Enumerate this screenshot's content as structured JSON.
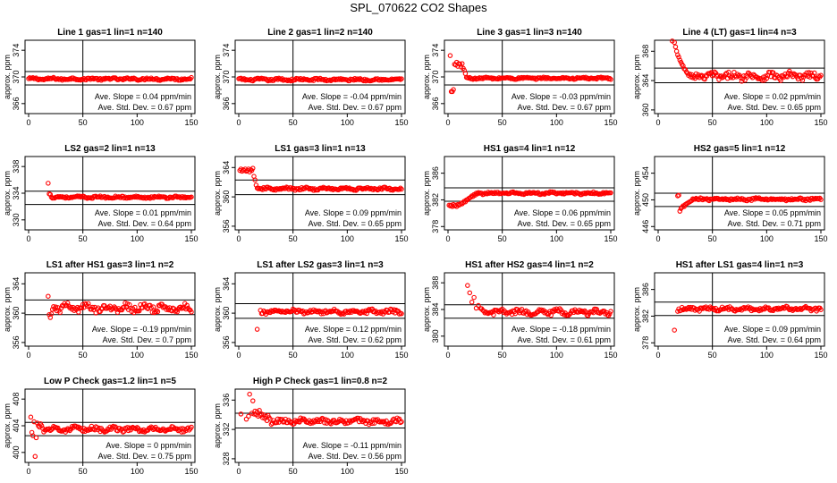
{
  "figure_title": "SPL_070622  CO2 Shapes",
  "colors": {
    "points": "#ff0000",
    "axes": "#000000",
    "background": "#ffffff"
  },
  "chart_data": [
    {
      "type": "scatter",
      "title": "Line 1 gas=1 lin=1 n=140",
      "ylabel": "approx. ppm",
      "xlim": [
        0,
        150
      ],
      "xticks": [
        0,
        50,
        100,
        150
      ],
      "ylim": [
        364.5,
        375.5
      ],
      "yticks": [
        366,
        370,
        374
      ],
      "hlines": [
        368.8,
        370.8
      ],
      "vline": 50,
      "slope_label": "Ave. Slope = 0.04 ppm/min",
      "std_label": "Ave. Std. Dev. = 0.67 ppm",
      "x_start": 0,
      "x_end": 150,
      "baseline": 369.7,
      "noise": 0.15,
      "early": []
    },
    {
      "type": "scatter",
      "title": "Line 2 gas=1 lin=2 n=140",
      "ylabel": "approx. ppm",
      "xlim": [
        0,
        150
      ],
      "xticks": [
        0,
        50,
        100,
        150
      ],
      "ylim": [
        364.5,
        375.5
      ],
      "yticks": [
        366,
        370,
        374
      ],
      "hlines": [
        368.8,
        370.8
      ],
      "vline": 50,
      "slope_label": "Ave. Slope = -0.04 ppm/min",
      "std_label": "Ave. Std. Dev. = 0.67 ppm",
      "x_start": 0,
      "x_end": 150,
      "baseline": 369.6,
      "noise": 0.15,
      "early": []
    },
    {
      "type": "scatter",
      "title": "Line 3 gas=1 lin=3 n=140",
      "ylabel": "approx. ppm",
      "xlim": [
        0,
        150
      ],
      "xticks": [
        0,
        50,
        100,
        150
      ],
      "ylim": [
        364.5,
        375.5
      ],
      "yticks": [
        366,
        370,
        374
      ],
      "hlines": [
        368.8,
        370.8
      ],
      "vline": 50,
      "slope_label": "Ave. Slope = -0.03 ppm/min",
      "std_label": "Ave. Std. Dev. = 0.67 ppm",
      "x_start": 17,
      "x_end": 150,
      "baseline": 369.8,
      "noise": 0.12,
      "early": [
        [
          2,
          373.2
        ],
        [
          3,
          367.8
        ],
        [
          4,
          367.8
        ],
        [
          5,
          368.1
        ],
        [
          6,
          371.9
        ],
        [
          7,
          371.8
        ],
        [
          8,
          372.2
        ],
        [
          9,
          371.6
        ],
        [
          10,
          372.0
        ],
        [
          11,
          371.9
        ],
        [
          12,
          371.5
        ],
        [
          13,
          372.0
        ],
        [
          14,
          371.3
        ],
        [
          15,
          371.0
        ],
        [
          16,
          370.5
        ]
      ]
    },
    {
      "type": "scatter",
      "title": "Line 4 (LT) gas=1 lin=4 n=3",
      "ylabel": "approx. ppm",
      "xlim": [
        0,
        150
      ],
      "xticks": [
        0,
        50,
        100,
        150
      ],
      "ylim": [
        359.5,
        369.5
      ],
      "yticks": [
        360,
        364,
        368
      ],
      "hlines": [
        363.7,
        365.7
      ],
      "vline": 50,
      "slope_label": "Ave. Slope = 0.02 ppm/min",
      "std_label": "Ave. Std. Dev. = 0.65 ppm",
      "x_start": 35,
      "x_end": 150,
      "baseline": 364.6,
      "noise": 0.45,
      "early": [
        [
          13,
          369.4
        ],
        [
          15,
          369.2
        ],
        [
          16,
          368.6
        ],
        [
          17,
          368.0
        ],
        [
          18,
          367.5
        ],
        [
          19,
          367.2
        ],
        [
          20,
          366.8
        ],
        [
          21,
          366.5
        ],
        [
          22,
          366.2
        ],
        [
          23,
          366.0
        ],
        [
          24,
          365.6
        ],
        [
          25,
          365.5
        ],
        [
          26,
          365.2
        ],
        [
          27,
          365.0
        ],
        [
          28,
          364.7
        ],
        [
          29,
          364.9
        ],
        [
          30,
          364.5
        ],
        [
          31,
          364.8
        ],
        [
          32,
          364.4
        ],
        [
          33,
          364.6
        ],
        [
          34,
          364.3
        ]
      ]
    },
    {
      "type": "scatter",
      "title": "LS2 gas=2 lin=1 n=13",
      "ylabel": "approx. ppm",
      "xlim": [
        0,
        150
      ],
      "xticks": [
        0,
        50,
        100,
        150
      ],
      "ylim": [
        328.5,
        339.5
      ],
      "yticks": [
        330,
        334,
        338
      ],
      "hlines": [
        332.3,
        334.3
      ],
      "vline": 50,
      "slope_label": "Ave. Slope = 0.01 ppm/min",
      "std_label": "Ave. Std. Dev. = 0.64 ppm",
      "x_start": 21,
      "x_end": 150,
      "baseline": 333.4,
      "noise": 0.13,
      "early": [
        [
          18,
          335.5
        ],
        [
          19,
          333.9
        ],
        [
          20,
          333.8
        ]
      ]
    },
    {
      "type": "scatter",
      "title": "LS1 gas=3 lin=1 n=13",
      "ylabel": "approx. ppm",
      "xlim": [
        0,
        150
      ],
      "xticks": [
        0,
        50,
        100,
        150
      ],
      "ylim": [
        355.5,
        365.5
      ],
      "yticks": [
        356,
        360,
        364
      ],
      "hlines": [
        360.3,
        362.3
      ],
      "vline": 50,
      "slope_label": "Ave. Slope = 0.09 ppm/min",
      "std_label": "Ave. Std. Dev. = 0.65 ppm",
      "x_start": 18,
      "x_end": 150,
      "baseline": 361.1,
      "noise": 0.15,
      "early": [
        [
          1,
          363.6
        ],
        [
          2,
          363.8
        ],
        [
          3,
          363.5
        ],
        [
          4,
          363.7
        ],
        [
          5,
          363.6
        ],
        [
          6,
          363.8
        ],
        [
          7,
          363.5
        ],
        [
          8,
          363.6
        ],
        [
          9,
          363.8
        ],
        [
          10,
          363.4
        ],
        [
          11,
          363.7
        ],
        [
          12,
          363.6
        ],
        [
          13,
          363.9
        ],
        [
          14,
          362.8
        ],
        [
          15,
          362.3
        ],
        [
          16,
          361.6
        ],
        [
          17,
          361.2
        ]
      ]
    },
    {
      "type": "scatter",
      "title": "HS1 gas=4 lin=1 n=12",
      "ylabel": "approx. ppm",
      "xlim": [
        0,
        150
      ],
      "xticks": [
        0,
        50,
        100,
        150
      ],
      "ylim": [
        377.5,
        388.5
      ],
      "yticks": [
        378,
        382,
        386
      ],
      "hlines": [
        381.8,
        383.8
      ],
      "vline": 50,
      "slope_label": "Ave. Slope = 0.06 ppm/min",
      "std_label": "Ave. Std. Dev. = 0.65 ppm",
      "x_start": 30,
      "x_end": 150,
      "baseline": 383.0,
      "noise": 0.14,
      "early": [
        [
          1,
          381.2
        ],
        [
          2,
          381.1
        ],
        [
          3,
          381.2
        ],
        [
          4,
          381.0
        ],
        [
          5,
          381.3
        ],
        [
          6,
          381.1
        ],
        [
          7,
          381.2
        ],
        [
          8,
          381.0
        ],
        [
          9,
          381.3
        ],
        [
          10,
          381.2
        ],
        [
          11,
          381.3
        ],
        [
          12,
          381.5
        ],
        [
          13,
          381.4
        ],
        [
          14,
          381.6
        ],
        [
          15,
          381.8
        ],
        [
          16,
          381.7
        ],
        [
          17,
          382.0
        ],
        [
          18,
          382.0
        ],
        [
          19,
          382.2
        ],
        [
          20,
          382.3
        ],
        [
          21,
          382.4
        ],
        [
          22,
          382.6
        ],
        [
          23,
          382.5
        ],
        [
          24,
          382.8
        ],
        [
          25,
          382.7
        ],
        [
          26,
          383.0
        ],
        [
          27,
          382.9
        ],
        [
          28,
          383.1
        ],
        [
          29,
          383.0
        ]
      ]
    },
    {
      "type": "scatter",
      "title": "HS2 gas=5 lin=1 n=12",
      "ylabel": "approx. ppm",
      "xlim": [
        0,
        150
      ],
      "xticks": [
        0,
        50,
        100,
        150
      ],
      "ylim": [
        445.5,
        456.5
      ],
      "yticks": [
        446,
        450,
        454
      ],
      "hlines": [
        449.0,
        451.0
      ],
      "vline": 50,
      "slope_label": "Ave. Slope = 0.05 ppm/min",
      "std_label": "Ave. Std. Dev. = 0.71 ppm",
      "x_start": 32,
      "x_end": 150,
      "baseline": 450.1,
      "noise": 0.16,
      "early": [
        [
          18,
          450.6
        ],
        [
          19,
          450.7
        ],
        [
          20,
          448.3
        ],
        [
          21,
          448.7
        ],
        [
          22,
          448.9
        ],
        [
          23,
          449.1
        ],
        [
          24,
          449.0
        ],
        [
          25,
          449.3
        ],
        [
          26,
          449.4
        ],
        [
          27,
          449.5
        ],
        [
          28,
          449.6
        ],
        [
          29,
          449.7
        ],
        [
          30,
          449.8
        ],
        [
          31,
          449.9
        ]
      ]
    },
    {
      "type": "scatter",
      "title": "LS1 after HS1 gas=3 lin=1 n=2",
      "ylabel": "approx. ppm",
      "xlim": [
        0,
        150
      ],
      "xticks": [
        0,
        50,
        100,
        150
      ],
      "ylim": [
        355.5,
        365.5
      ],
      "yticks": [
        356,
        360,
        364
      ],
      "hlines": [
        359.8,
        361.8
      ],
      "vline": 50,
      "slope_label": "Ave. Slope = -0.19 ppm/min",
      "std_label": "Ave. Std. Dev. = 0.7 ppm",
      "x_start": 25,
      "x_end": 150,
      "baseline": 360.7,
      "noise": 0.45,
      "early": [
        [
          18,
          362.3
        ],
        [
          19,
          359.8
        ],
        [
          20,
          359.4
        ],
        [
          21,
          359.9
        ],
        [
          22,
          360.5
        ],
        [
          23,
          360.9
        ],
        [
          24,
          360.6
        ]
      ]
    },
    {
      "type": "scatter",
      "title": "LS1 after LS2 gas=3 lin=1 n=3",
      "ylabel": "approx. ppm",
      "xlim": [
        0,
        150
      ],
      "xticks": [
        0,
        50,
        100,
        150
      ],
      "ylim": [
        355.5,
        365.5
      ],
      "yticks": [
        356,
        360,
        364
      ],
      "hlines": [
        359.3,
        361.3
      ],
      "vline": 50,
      "slope_label": "Ave. Slope = 0.12 ppm/min",
      "std_label": "Ave. Std. Dev. = 0.62 ppm",
      "x_start": 20,
      "x_end": 150,
      "baseline": 360.2,
      "noise": 0.25,
      "early": [
        [
          17,
          357.8
        ]
      ]
    },
    {
      "type": "scatter",
      "title": "HS1 after HS2 gas=4 lin=1 n=2",
      "ylabel": "approx. ppm",
      "xlim": [
        0,
        150
      ],
      "xticks": [
        0,
        50,
        100,
        150
      ],
      "ylim": [
        378.5,
        389.5
      ],
      "yticks": [
        380,
        384,
        388
      ],
      "hlines": [
        382.7,
        384.7
      ],
      "vline": 50,
      "slope_label": "Ave. Slope = -0.18 ppm/min",
      "std_label": "Ave. Std. Dev. = 0.61 ppm",
      "x_start": 30,
      "x_end": 150,
      "baseline": 383.6,
      "noise": 0.35,
      "early": [
        [
          18,
          387.6
        ],
        [
          20,
          386.5
        ],
        [
          22,
          385.1
        ],
        [
          24,
          385.8
        ],
        [
          26,
          384.2
        ],
        [
          28,
          384.6
        ]
      ]
    },
    {
      "type": "scatter",
      "title": "HS1 after LS1 gas=4 lin=1 n=3",
      "ylabel": "approx. ppm",
      "xlim": [
        0,
        150
      ],
      "xticks": [
        0,
        50,
        100,
        150
      ],
      "ylim": [
        377.5,
        388.5
      ],
      "yticks": [
        378,
        382,
        386
      ],
      "hlines": [
        382.1,
        384.1
      ],
      "vline": 50,
      "slope_label": "Ave. Slope = 0.09 ppm/min",
      "std_label": "Ave. Std. Dev. = 0.64 ppm",
      "x_start": 18,
      "x_end": 150,
      "baseline": 383.1,
      "noise": 0.25,
      "early": [
        [
          15,
          379.9
        ]
      ]
    },
    {
      "type": "scatter",
      "title": "Low P Check gas=1.2 lin=1 n=5",
      "ylabel": "approx. ppm",
      "xlim": [
        0,
        150
      ],
      "xticks": [
        0,
        50,
        100,
        150
      ],
      "ylim": [
        398.5,
        409.5
      ],
      "yticks": [
        400,
        404,
        408
      ],
      "hlines": [
        402.5,
        404.5
      ],
      "vline": 50,
      "slope_label": "Ave. Slope = 0 ppm/min",
      "std_label": "Ave. Std. Dev. = 0.75 ppm",
      "x_start": 14,
      "x_end": 150,
      "baseline": 403.5,
      "noise": 0.3,
      "early": [
        [
          2,
          405.3
        ],
        [
          3,
          403.0
        ],
        [
          4,
          402.5
        ],
        [
          5,
          404.6
        ],
        [
          6,
          399.4
        ],
        [
          7,
          402.2
        ],
        [
          8,
          404.4
        ],
        [
          9,
          404.0
        ],
        [
          10,
          403.8
        ],
        [
          11,
          404.3
        ],
        [
          12,
          404.0
        ],
        [
          13,
          403.6
        ]
      ]
    },
    {
      "type": "scatter",
      "title": "High P Check gas=1 lin=0.8 n=2",
      "ylabel": "approx. ppm",
      "xlim": [
        0,
        150
      ],
      "xticks": [
        0,
        50,
        100,
        150
      ],
      "ylim": [
        327.5,
        337.5
      ],
      "yticks": [
        328,
        332,
        336
      ],
      "hlines": [
        332.2,
        334.2
      ],
      "vline": 50,
      "slope_label": "Ave. Slope = -0.11 ppm/min",
      "std_label": "Ave. Std. Dev. = 0.56 ppm",
      "x_start": 30,
      "x_end": 150,
      "baseline": 333.1,
      "noise": 0.3,
      "early": [
        [
          2,
          334.1
        ],
        [
          7,
          333.4
        ],
        [
          9,
          333.8
        ],
        [
          10,
          336.8
        ],
        [
          12,
          334.2
        ],
        [
          13,
          335.9
        ],
        [
          14,
          334.1
        ],
        [
          15,
          334.5
        ],
        [
          16,
          334.0
        ],
        [
          17,
          334.4
        ],
        [
          18,
          333.8
        ],
        [
          19,
          334.6
        ],
        [
          20,
          333.9
        ],
        [
          21,
          334.1
        ],
        [
          22,
          333.6
        ],
        [
          23,
          334.0
        ],
        [
          24,
          333.5
        ],
        [
          25,
          333.8
        ],
        [
          26,
          333.2
        ],
        [
          27,
          333.9
        ],
        [
          28,
          333.6
        ],
        [
          29,
          333.4
        ]
      ]
    }
  ]
}
